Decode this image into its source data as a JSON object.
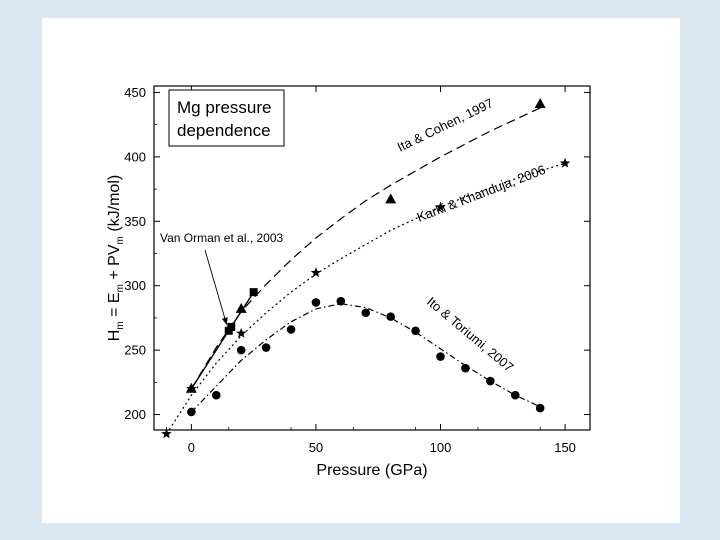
{
  "chart_data": {
    "type": "scatter",
    "title_box": [
      "Mg pressure",
      "dependence"
    ],
    "xlabel": "Pressure (GPa)",
    "ylabel": {
      "H": "H",
      "H_sub": "m",
      "eq": " = E",
      "E_sub": "m",
      "plus": " + PV",
      "V_sub": "m",
      "unit": " (kJ/mol)"
    },
    "xlim": [
      -15,
      160
    ],
    "ylim": [
      188,
      455
    ],
    "xticks": [
      0,
      50,
      100,
      150
    ],
    "yticks": [
      200,
      250,
      300,
      350,
      400,
      450
    ],
    "xtick_labels": [
      "0",
      "50",
      "100",
      "150"
    ],
    "ytick_labels": [
      "200",
      "250",
      "300",
      "350",
      "400",
      "450"
    ],
    "series": [
      {
        "name": "Ita & Cohen, 1997",
        "marker": "triangle",
        "line": "dashed",
        "points": [
          [
            0,
            220
          ],
          [
            20,
            282
          ],
          [
            80,
            367
          ],
          [
            140,
            441
          ]
        ],
        "curve": [
          [
            0,
            220
          ],
          [
            10,
            252
          ],
          [
            20,
            280
          ],
          [
            30,
            301
          ],
          [
            40,
            320
          ],
          [
            50,
            337
          ],
          [
            60,
            352
          ],
          [
            70,
            366
          ],
          [
            80,
            378
          ],
          [
            90,
            389
          ],
          [
            100,
            400
          ],
          [
            110,
            410
          ],
          [
            120,
            420
          ],
          [
            130,
            429
          ],
          [
            140,
            438
          ]
        ]
      },
      {
        "name": "Karki & Khanduja, 2006",
        "marker": "star",
        "line": "dotted",
        "points": [
          [
            -10,
            185
          ],
          [
            0,
            220
          ],
          [
            20,
            263
          ],
          [
            50,
            310
          ],
          [
            100,
            361
          ],
          [
            150,
            395
          ]
        ],
        "curve": [
          [
            -10,
            185
          ],
          [
            0,
            215
          ],
          [
            10,
            240
          ],
          [
            20,
            261
          ],
          [
            30,
            279
          ],
          [
            40,
            295
          ],
          [
            50,
            309
          ],
          [
            60,
            321
          ],
          [
            70,
            332
          ],
          [
            80,
            343
          ],
          [
            90,
            352
          ],
          [
            100,
            361
          ],
          [
            110,
            369
          ],
          [
            120,
            376
          ],
          [
            130,
            383
          ],
          [
            140,
            389
          ],
          [
            150,
            395
          ]
        ]
      },
      {
        "name": "Ito & Toriumi, 2007",
        "marker": "circle",
        "line": "dash-dot",
        "points": [
          [
            0,
            202
          ],
          [
            10,
            215
          ],
          [
            20,
            250
          ],
          [
            30,
            252
          ],
          [
            40,
            266
          ],
          [
            50,
            287
          ],
          [
            60,
            288
          ],
          [
            70,
            279
          ],
          [
            80,
            276
          ],
          [
            90,
            265
          ],
          [
            100,
            245
          ],
          [
            110,
            236
          ],
          [
            120,
            226
          ],
          [
            130,
            215
          ],
          [
            140,
            205
          ]
        ],
        "curve": [
          [
            0,
            202
          ],
          [
            10,
            222
          ],
          [
            20,
            242
          ],
          [
            30,
            258
          ],
          [
            40,
            272
          ],
          [
            50,
            282
          ],
          [
            60,
            286
          ],
          [
            70,
            283
          ],
          [
            80,
            275
          ],
          [
            90,
            264
          ],
          [
            100,
            251
          ],
          [
            110,
            238
          ],
          [
            120,
            226
          ],
          [
            130,
            215
          ],
          [
            140,
            206
          ]
        ]
      },
      {
        "name": "Van Orman et al., 2003",
        "marker": "square",
        "line": "solid",
        "points": [
          [
            15,
            265
          ],
          [
            16,
            268
          ],
          [
            25,
            295
          ]
        ],
        "curve": [
          [
            0,
            220
          ],
          [
            15,
            265
          ],
          [
            16,
            268
          ],
          [
            25,
            295
          ]
        ]
      }
    ],
    "annotations": [
      {
        "text": "Ita & Cohen, 1997",
        "series": 0
      },
      {
        "text": "Karki & Khanduja, 2006",
        "series": 1
      },
      {
        "text": "Ito & Toriumi, 2007",
        "series": 2
      },
      {
        "text": "Van Orman et al., 2003",
        "series": 3,
        "arrow_to": [
          15,
          265
        ]
      }
    ]
  }
}
